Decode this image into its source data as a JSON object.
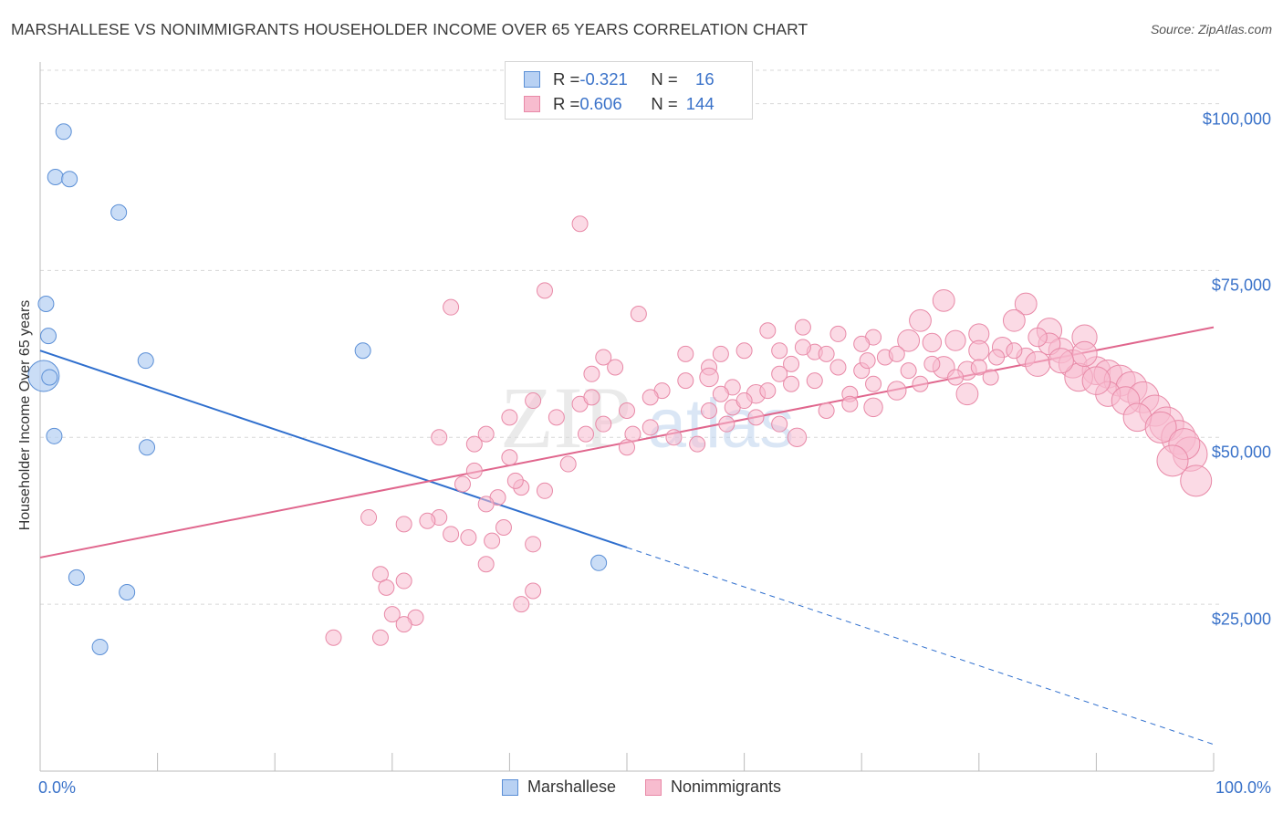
{
  "header": {
    "title": "MARSHALLESE VS NONIMMIGRANTS HOUSEHOLDER INCOME OVER 65 YEARS CORRELATION CHART",
    "source": "Source: ZipAtlas.com"
  },
  "stats": {
    "rows": [
      {
        "r_label": "R = ",
        "r_value": "-0.321",
        "n_label": "N = ",
        "n_value": "16"
      },
      {
        "r_label": "R = ",
        "r_value": "0.606",
        "n_label": "N = ",
        "n_value": "144"
      }
    ]
  },
  "legend": {
    "items": [
      "Marshallese",
      "Nonimmigrants"
    ]
  },
  "watermark": {
    "zip": "ZIP",
    "atlas": "atlas"
  },
  "colors": {
    "blue_fill": "#b8d1f3",
    "blue_stroke": "#5b8fd6",
    "blue_line": "#2f6fce",
    "pink_fill": "#f7bccf",
    "pink_stroke": "#e889a7",
    "pink_line": "#e0668d",
    "axis_text": "#3a72c9",
    "grid": "#d8d8d8"
  },
  "chart_data": {
    "type": "scatter",
    "title": "MARSHALLESE VS NONIMMIGRANTS HOUSEHOLDER INCOME OVER 65 YEARS CORRELATION CHART",
    "xlabel": "",
    "ylabel": "Householder Income Over 65 years",
    "xlim": [
      0,
      100
    ],
    "ylim": [
      0,
      105000
    ],
    "x_ticks": [
      "0.0%",
      "100.0%"
    ],
    "y_ticks": [
      {
        "value": 25000,
        "label": "$25,000"
      },
      {
        "value": 50000,
        "label": "$50,000"
      },
      {
        "value": 75000,
        "label": "$75,000"
      },
      {
        "value": 100000,
        "label": "$100,000"
      }
    ],
    "grid": true,
    "legend_position": "bottom",
    "series": [
      {
        "name": "Marshallese",
        "r": -0.321,
        "n": 16,
        "trend": {
          "x0": 0,
          "y0": 63000,
          "x1": 50,
          "y1": 33500,
          "dashed_to_x": 100,
          "dashed_to_y": 4000
        },
        "points": [
          [
            2.0,
            95800,
            1
          ],
          [
            1.3,
            89000,
            1
          ],
          [
            2.5,
            88700,
            1
          ],
          [
            6.7,
            83700,
            1
          ],
          [
            0.5,
            70000,
            1
          ],
          [
            0.7,
            65200,
            1
          ],
          [
            0.3,
            59200,
            2
          ],
          [
            0.8,
            59000,
            1
          ],
          [
            9.0,
            61500,
            1
          ],
          [
            27.5,
            63000,
            1
          ],
          [
            1.2,
            50200,
            1
          ],
          [
            9.1,
            48500,
            1
          ],
          [
            3.1,
            29000,
            1
          ],
          [
            7.4,
            26800,
            1
          ],
          [
            5.1,
            18600,
            1
          ],
          [
            47.6,
            31200,
            1
          ]
        ]
      },
      {
        "name": "Nonimmigrants",
        "r": 0.606,
        "n": 144,
        "trend": {
          "x0": 0,
          "y0": 32000,
          "x1": 100,
          "y1": 66500
        },
        "points": [
          [
            46,
            82000,
            1
          ],
          [
            43,
            72000,
            1
          ],
          [
            35,
            69500,
            1
          ],
          [
            51,
            68500,
            1
          ],
          [
            77,
            70500,
            1.4
          ],
          [
            84,
            70000,
            1.4
          ],
          [
            75,
            67500,
            1.4
          ],
          [
            65,
            66500,
            1
          ],
          [
            71,
            65000,
            1
          ],
          [
            62,
            66000,
            1
          ],
          [
            70,
            64000,
            1
          ],
          [
            74,
            64500,
            1.4
          ],
          [
            83,
            67500,
            1.4
          ],
          [
            86,
            66000,
            1.6
          ],
          [
            89,
            65000,
            1.6
          ],
          [
            80,
            65500,
            1.3
          ],
          [
            78,
            64500,
            1.3
          ],
          [
            80,
            63000,
            1.3
          ],
          [
            82,
            63500,
            1.3
          ],
          [
            76,
            64200,
            1.2
          ],
          [
            68,
            65500,
            1
          ],
          [
            60,
            63000,
            1
          ],
          [
            58,
            62500,
            1
          ],
          [
            63,
            63000,
            1
          ],
          [
            66,
            62800,
            1
          ],
          [
            68,
            60500,
            1
          ],
          [
            70,
            60000,
            1
          ],
          [
            72,
            62000,
            1
          ],
          [
            74,
            60000,
            1
          ],
          [
            77,
            60500,
            1.4
          ],
          [
            79,
            60000,
            1.2
          ],
          [
            84,
            62000,
            1.2
          ],
          [
            85,
            61000,
            1.6
          ],
          [
            87,
            63000,
            1.6
          ],
          [
            88,
            61000,
            1.8
          ],
          [
            90,
            60000,
            1.8
          ],
          [
            91,
            59500,
            1.8
          ],
          [
            92,
            58500,
            2.0
          ],
          [
            93,
            57500,
            2.0
          ],
          [
            94,
            56000,
            2.0
          ],
          [
            95,
            54000,
            2.0
          ],
          [
            96,
            52000,
            2.2
          ],
          [
            97,
            50000,
            2.2
          ],
          [
            98,
            47500,
            2.2
          ],
          [
            98.5,
            43500,
            2.0
          ],
          [
            88.5,
            59000,
            1.8
          ],
          [
            91,
            56500,
            1.6
          ],
          [
            89,
            62500,
            1.6
          ],
          [
            86,
            64000,
            1.4
          ],
          [
            47,
            59500,
            1
          ],
          [
            49,
            60500,
            1
          ],
          [
            48,
            62000,
            1
          ],
          [
            55,
            62500,
            1
          ],
          [
            57,
            60500,
            1
          ],
          [
            59,
            57500,
            1
          ],
          [
            61,
            56500,
            1.2
          ],
          [
            64,
            58000,
            1
          ],
          [
            66,
            58500,
            1
          ],
          [
            69,
            56500,
            1
          ],
          [
            71,
            58000,
            1
          ],
          [
            73,
            57000,
            1.2
          ],
          [
            75,
            58000,
            1
          ],
          [
            78,
            59000,
            1
          ],
          [
            80,
            60500,
            1
          ],
          [
            81,
            59000,
            1
          ],
          [
            79,
            56500,
            1.4
          ],
          [
            64,
            61000,
            1
          ],
          [
            57,
            59000,
            1.2
          ],
          [
            53,
            57000,
            1
          ],
          [
            55,
            58500,
            1
          ],
          [
            52,
            56000,
            1
          ],
          [
            50,
            54000,
            1
          ],
          [
            46,
            55000,
            1
          ],
          [
            47,
            56000,
            1
          ],
          [
            44,
            53000,
            1
          ],
          [
            48,
            52000,
            1
          ],
          [
            50.5,
            50500,
            1
          ],
          [
            52,
            51500,
            1
          ],
          [
            54,
            50000,
            1
          ],
          [
            56,
            49000,
            1
          ],
          [
            57,
            54000,
            1
          ],
          [
            59,
            54500,
            1
          ],
          [
            61,
            53000,
            1
          ],
          [
            63,
            52000,
            1
          ],
          [
            64.5,
            50000,
            1.2
          ],
          [
            67,
            54000,
            1
          ],
          [
            69,
            55000,
            1
          ],
          [
            71,
            54500,
            1.2
          ],
          [
            42,
            55500,
            1
          ],
          [
            40,
            53000,
            1
          ],
          [
            38,
            50500,
            1
          ],
          [
            34,
            50000,
            1
          ],
          [
            37,
            49000,
            1
          ],
          [
            45,
            46000,
            1
          ],
          [
            50,
            48500,
            1
          ],
          [
            40,
            47000,
            1
          ],
          [
            37,
            45000,
            1
          ],
          [
            36,
            43000,
            1
          ],
          [
            41,
            42500,
            1
          ],
          [
            43,
            42000,
            1
          ],
          [
            40.5,
            43500,
            1
          ],
          [
            39,
            41000,
            1
          ],
          [
            38,
            40000,
            1
          ],
          [
            34,
            38000,
            1
          ],
          [
            33,
            37500,
            1
          ],
          [
            31,
            37000,
            1
          ],
          [
            28,
            38000,
            1
          ],
          [
            35,
            35500,
            1
          ],
          [
            36.5,
            35000,
            1
          ],
          [
            38.5,
            34500,
            1
          ],
          [
            39.5,
            36500,
            1
          ],
          [
            42,
            34000,
            1
          ],
          [
            38,
            31000,
            1
          ],
          [
            29,
            29500,
            1
          ],
          [
            31,
            28500,
            1
          ],
          [
            29.5,
            27500,
            1
          ],
          [
            42,
            27000,
            1
          ],
          [
            41,
            25000,
            1
          ],
          [
            32,
            23000,
            1
          ],
          [
            30,
            23500,
            1
          ],
          [
            31,
            22000,
            1
          ],
          [
            29,
            20000,
            1
          ],
          [
            25,
            20000,
            1
          ],
          [
            46.5,
            50500,
            1
          ],
          [
            62,
            57000,
            1
          ],
          [
            58,
            56500,
            1
          ],
          [
            60,
            55500,
            1
          ],
          [
            63,
            59500,
            1
          ],
          [
            65,
            63500,
            1
          ],
          [
            67,
            62500,
            1
          ],
          [
            70.5,
            61500,
            1
          ],
          [
            73,
            62500,
            1
          ],
          [
            76,
            61000,
            1
          ],
          [
            81.5,
            62000,
            1
          ],
          [
            83,
            63000,
            1
          ],
          [
            85,
            65000,
            1.2
          ],
          [
            87,
            61500,
            1.6
          ],
          [
            90,
            58500,
            1.8
          ],
          [
            92.5,
            55500,
            1.8
          ],
          [
            93.5,
            53000,
            1.8
          ],
          [
            95.5,
            51500,
            2.0
          ],
          [
            97.5,
            49000,
            2.0
          ],
          [
            96.5,
            46500,
            2.0
          ],
          [
            58.5,
            52000,
            1
          ]
        ]
      }
    ]
  }
}
